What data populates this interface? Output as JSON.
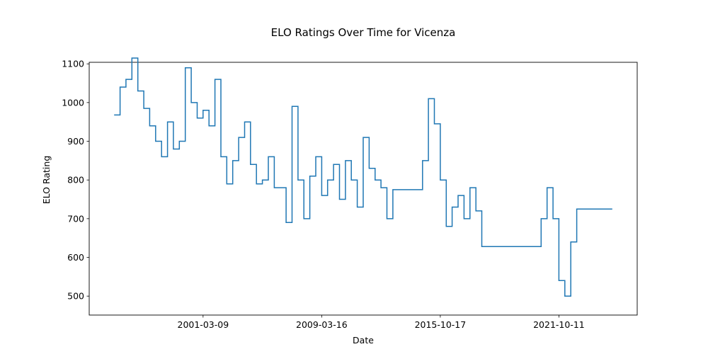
{
  "chart_data": {
    "type": "line",
    "title": "ELO Ratings Over Time for Vicenza",
    "x_label": "Date",
    "y_label": "ELO Rating",
    "x": [
      "1995-03-20",
      "1995-08-13",
      "1996-01-06",
      "1996-05-31",
      "1996-10-24",
      "1997-03-19",
      "1997-08-12",
      "1998-01-05",
      "1998-05-30",
      "1998-10-23",
      "1999-03-18",
      "1999-08-11",
      "2000-01-04",
      "2000-05-28",
      "2000-10-14",
      "2001-03-09",
      "2001-08-02",
      "2001-12-26",
      "2002-05-20",
      "2002-10-13",
      "2003-03-08",
      "2003-08-01",
      "2003-12-25",
      "2004-05-19",
      "2004-10-12",
      "2005-03-07",
      "2005-07-31",
      "2005-12-24",
      "2006-05-19",
      "2006-10-12",
      "2007-03-07",
      "2007-07-31",
      "2007-12-24",
      "2008-05-18",
      "2008-10-16",
      "2009-03-16",
      "2009-07-14",
      "2009-11-11",
      "2010-03-11",
      "2010-07-09",
      "2010-11-06",
      "2011-03-06",
      "2011-07-04",
      "2011-11-01",
      "2012-02-29",
      "2012-06-28",
      "2012-10-26",
      "2013-02-23",
      "2013-06-23",
      "2013-10-21",
      "2014-02-18",
      "2014-06-18",
      "2014-10-16",
      "2015-02-13",
      "2015-06-13",
      "2015-10-17",
      "2016-02-04",
      "2016-05-24",
      "2016-09-11",
      "2016-12-30",
      "2017-04-19",
      "2017-08-07",
      "2017-11-25",
      "2018-03-15",
      "2018-07-03",
      "2018-10-21",
      "2019-02-08",
      "2019-05-29",
      "2019-09-16",
      "2020-01-04",
      "2020-04-23",
      "2020-08-11",
      "2020-11-29",
      "2021-03-19",
      "2021-07-07",
      "2021-10-11",
      "2022-01-29",
      "2022-05-19",
      "2022-09-06",
      "2022-12-25",
      "2023-04-14",
      "2023-08-02",
      "2023-11-20",
      "2024-03-09",
      "2024-06-27"
    ],
    "series": [
      {
        "color": "#1f77b4",
        "values": [
          968,
          1040,
          1060,
          1115,
          1030,
          985,
          940,
          900,
          860,
          950,
          880,
          900,
          1090,
          1000,
          960,
          980,
          940,
          1060,
          860,
          790,
          850,
          910,
          950,
          840,
          790,
          800,
          860,
          780,
          780,
          690,
          990,
          800,
          700,
          810,
          860,
          760,
          800,
          840,
          750,
          850,
          800,
          730,
          910,
          830,
          800,
          780,
          700,
          775,
          775,
          775,
          775,
          775,
          850,
          1010,
          945,
          800,
          680,
          730,
          760,
          700,
          780,
          720,
          628,
          628,
          628,
          628,
          628,
          628,
          628,
          628,
          628,
          628,
          700,
          780,
          700,
          540,
          500,
          640,
          725,
          725,
          725,
          725,
          725,
          725,
          725
        ]
      }
    ],
    "xticks": [
      "2001-03-09",
      "2009-03-16",
      "2015-10-17",
      "2021-10-11"
    ],
    "ylim": [
      451,
      1104
    ],
    "yticks": [
      500,
      600,
      700,
      800,
      900,
      1000,
      1100
    ],
    "grid": false
  }
}
